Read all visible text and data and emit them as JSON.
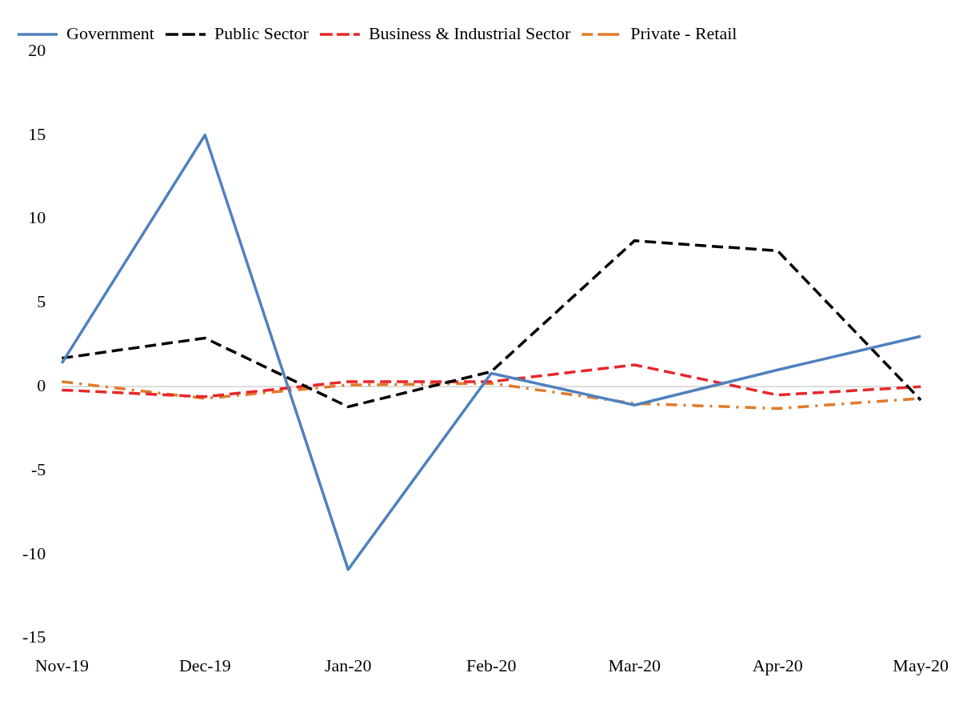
{
  "chart_data": {
    "type": "line",
    "categories": [
      "Nov-19",
      "Dec-19",
      "Jan-20",
      "Feb-20",
      "Mar-20",
      "Apr-20",
      "May-20"
    ],
    "series": [
      {
        "name": "Government",
        "color": "#4f81bd",
        "line_style": "solid",
        "values": [
          1.4,
          15,
          -10.9,
          0.8,
          -1.1,
          1.0,
          3.0
        ]
      },
      {
        "name": "Public Sector",
        "color": "#000000",
        "line_style": "dashed",
        "values": [
          1.7,
          2.9,
          -1.2,
          0.9,
          8.7,
          8.1,
          -0.8
        ]
      },
      {
        "name": "Business & Industrial Sector",
        "color": "#e8262b",
        "line_style": "dashed",
        "values": [
          -0.2,
          -0.6,
          0.3,
          0.3,
          1.3,
          -0.5,
          0.0
        ]
      },
      {
        "name": "Private - Retail",
        "color": "#e07b2a",
        "line_style": "dotted",
        "values": [
          0.3,
          -0.7,
          0.1,
          0.2,
          -1.0,
          -1.3,
          -0.7
        ]
      }
    ],
    "ylim": [
      -15,
      20
    ],
    "yticks": [
      -15,
      -10,
      -5,
      0,
      5,
      10,
      15,
      20
    ],
    "ref_lines": [
      {
        "axis": "y",
        "value": 0,
        "color": "#c8c8c8"
      }
    ],
    "grid": false,
    "legend": "top left",
    "marker": "none"
  }
}
